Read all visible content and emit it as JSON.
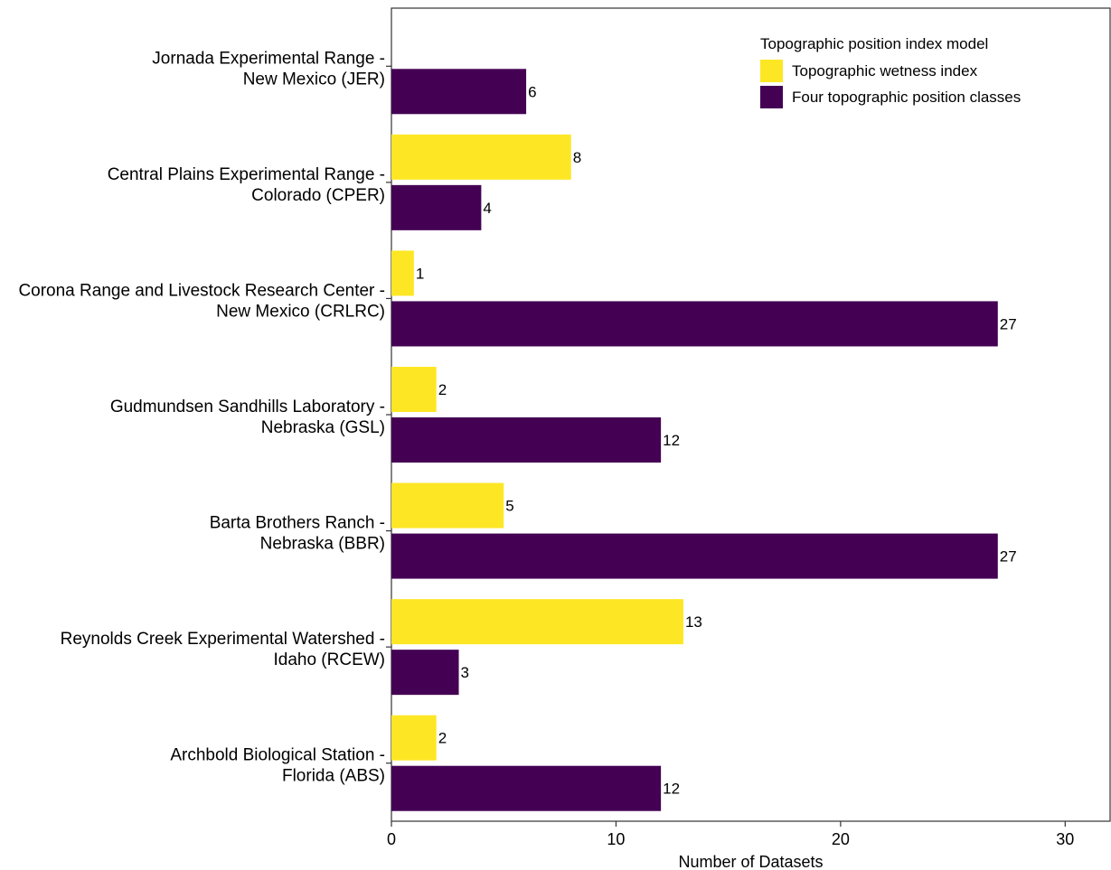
{
  "chart_data": {
    "type": "bar",
    "orientation": "horizontal",
    "title": "",
    "xlabel": "Number of Datasets",
    "ylabel": "",
    "xlim": [
      0,
      32
    ],
    "x_ticks": [
      0,
      10,
      20,
      30
    ],
    "grid": false,
    "legend": {
      "title": "Topographic position index model",
      "placement": "top-right"
    },
    "categories": [
      {
        "line1": "Jornada Experimental Range -",
        "line2": "New Mexico (JER)"
      },
      {
        "line1": "Central Plains Experimental Range -",
        "line2": "Colorado (CPER)"
      },
      {
        "line1": "Corona Range and Livestock Research Center -",
        "line2": "New Mexico (CRLRC)"
      },
      {
        "line1": "Gudmundsen Sandhills Laboratory -",
        "line2": "Nebraska (GSL)"
      },
      {
        "line1": "Barta Brothers Ranch -",
        "line2": "Nebraska (BBR)"
      },
      {
        "line1": "Reynolds Creek Experimental Watershed -",
        "line2": "Idaho (RCEW)"
      },
      {
        "line1": "Archbold Biological Station -",
        "line2": "Florida (ABS)"
      }
    ],
    "series": [
      {
        "name": "Topographic wetness index",
        "color": "#fde725",
        "values": [
          null,
          8,
          1,
          2,
          5,
          13,
          2
        ]
      },
      {
        "name": "Four topographic position classes",
        "color": "#440154",
        "values": [
          6,
          4,
          27,
          12,
          27,
          3,
          12
        ]
      }
    ]
  }
}
